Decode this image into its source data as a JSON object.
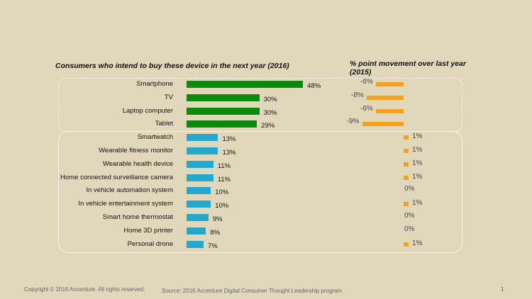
{
  "chart_data": {
    "type": "bar",
    "title": "Consumers  who intend to buy these  device in the next year (2016)",
    "change_title": "% point movement over last year (2015)",
    "categories": [
      "Smartphone",
      "TV",
      "Laptop computer",
      "Tablet",
      "Smartwatch",
      "Wearable fitness monitor",
      "Wearable health device",
      "Home connected surveillance camera",
      "In vehicle automation system",
      "In vehicle entertainment system",
      "Smart home thermostat",
      "Home 3D printer",
      "Personal drone"
    ],
    "series": [
      {
        "values": [
          48,
          30,
          30,
          29,
          13,
          13,
          11,
          11,
          10,
          10,
          9,
          8,
          7
        ],
        "labels": [
          "48%",
          "30%",
          "30%",
          "29%",
          "13%",
          "13%",
          "11%",
          "11%",
          "10%",
          "10%",
          "9%",
          "8%",
          "7%"
        ]
      },
      {
        "values": [
          -6,
          -8,
          -6,
          -9,
          1,
          1,
          1,
          1,
          0,
          1,
          0,
          0,
          1
        ],
        "labels": [
          "-6%",
          "-8%",
          "-6%",
          "-9%",
          "1%",
          "1%",
          "1%",
          "1%",
          "0%",
          "1%",
          "0%",
          "0%",
          "1%"
        ]
      }
    ],
    "colors": {
      "top_group": "#0b8a0b",
      "bottom_group": "#23a8cf",
      "change": "#f7a11a"
    }
  },
  "footer": {
    "copyright": "Copyright © 2016 Accenture. All rights reserved.",
    "source": "Source: 2016 Accenture Digital Consumer Thought Leadership program",
    "page": "1"
  }
}
